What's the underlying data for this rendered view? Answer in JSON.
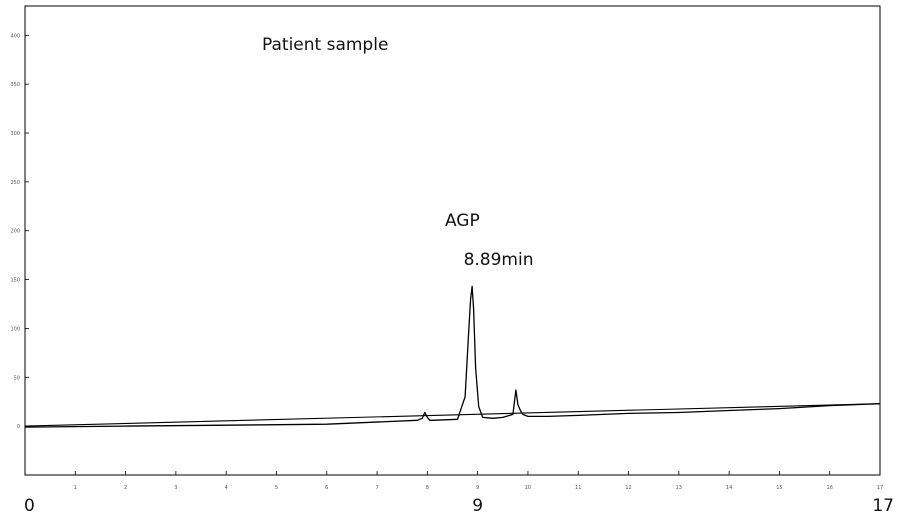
{
  "chart_data": {
    "type": "line",
    "title": "Patient sample",
    "xlabel": "",
    "ylabel": "",
    "xlim": [
      0,
      17
    ],
    "ylim": [
      -50,
      430
    ],
    "x_small_ticks": [
      "1",
      "2",
      "3",
      "4",
      "5",
      "6",
      "7",
      "8",
      "9",
      "10",
      "11",
      "12",
      "13",
      "14",
      "15",
      "16",
      "17"
    ],
    "y_small_ticks": [
      {
        "value": 0,
        "label": "0"
      },
      {
        "value": 50,
        "label": "50"
      },
      {
        "value": 100,
        "label": "100"
      },
      {
        "value": 150,
        "label": "150"
      },
      {
        "value": 200,
        "label": "200"
      },
      {
        "value": 250,
        "label": "250"
      },
      {
        "value": 300,
        "label": "300"
      },
      {
        "value": 350,
        "label": "350"
      },
      {
        "value": 400,
        "label": "400"
      }
    ],
    "x_big_labels": [
      {
        "value": 0,
        "label": "0"
      },
      {
        "value": 9,
        "label": "9"
      },
      {
        "value": 17,
        "label": "17"
      }
    ],
    "annotations": [
      {
        "text": "AGP",
        "x": 8.35,
        "y": 205
      },
      {
        "text": "8.89min",
        "x": 8.72,
        "y": 165
      }
    ],
    "grid": false,
    "legend": "none",
    "series": [
      {
        "color": "#000000",
        "x": [
          0,
          2,
          4,
          6,
          7.8,
          7.9,
          7.95,
          8.0,
          8.05,
          8.1,
          8.6,
          8.75,
          8.82,
          8.86,
          8.89,
          8.92,
          8.96,
          9.02,
          9.1,
          9.3,
          9.5,
          9.7,
          9.76,
          9.8,
          9.85,
          9.9,
          10.0,
          10.4,
          11,
          12,
          13,
          14,
          15,
          16,
          17
        ],
        "y": [
          -1,
          0,
          1,
          2,
          6,
          8,
          14,
          9,
          6,
          6,
          7,
          30,
          95,
          130,
          143,
          120,
          60,
          20,
          9,
          8,
          9,
          12,
          37,
          22,
          16,
          12,
          10,
          10,
          11,
          13,
          14,
          16,
          18,
          21,
          23
        ]
      },
      {
        "color": "#000000",
        "x": [
          0,
          17
        ],
        "y": [
          0,
          23
        ]
      }
    ]
  }
}
